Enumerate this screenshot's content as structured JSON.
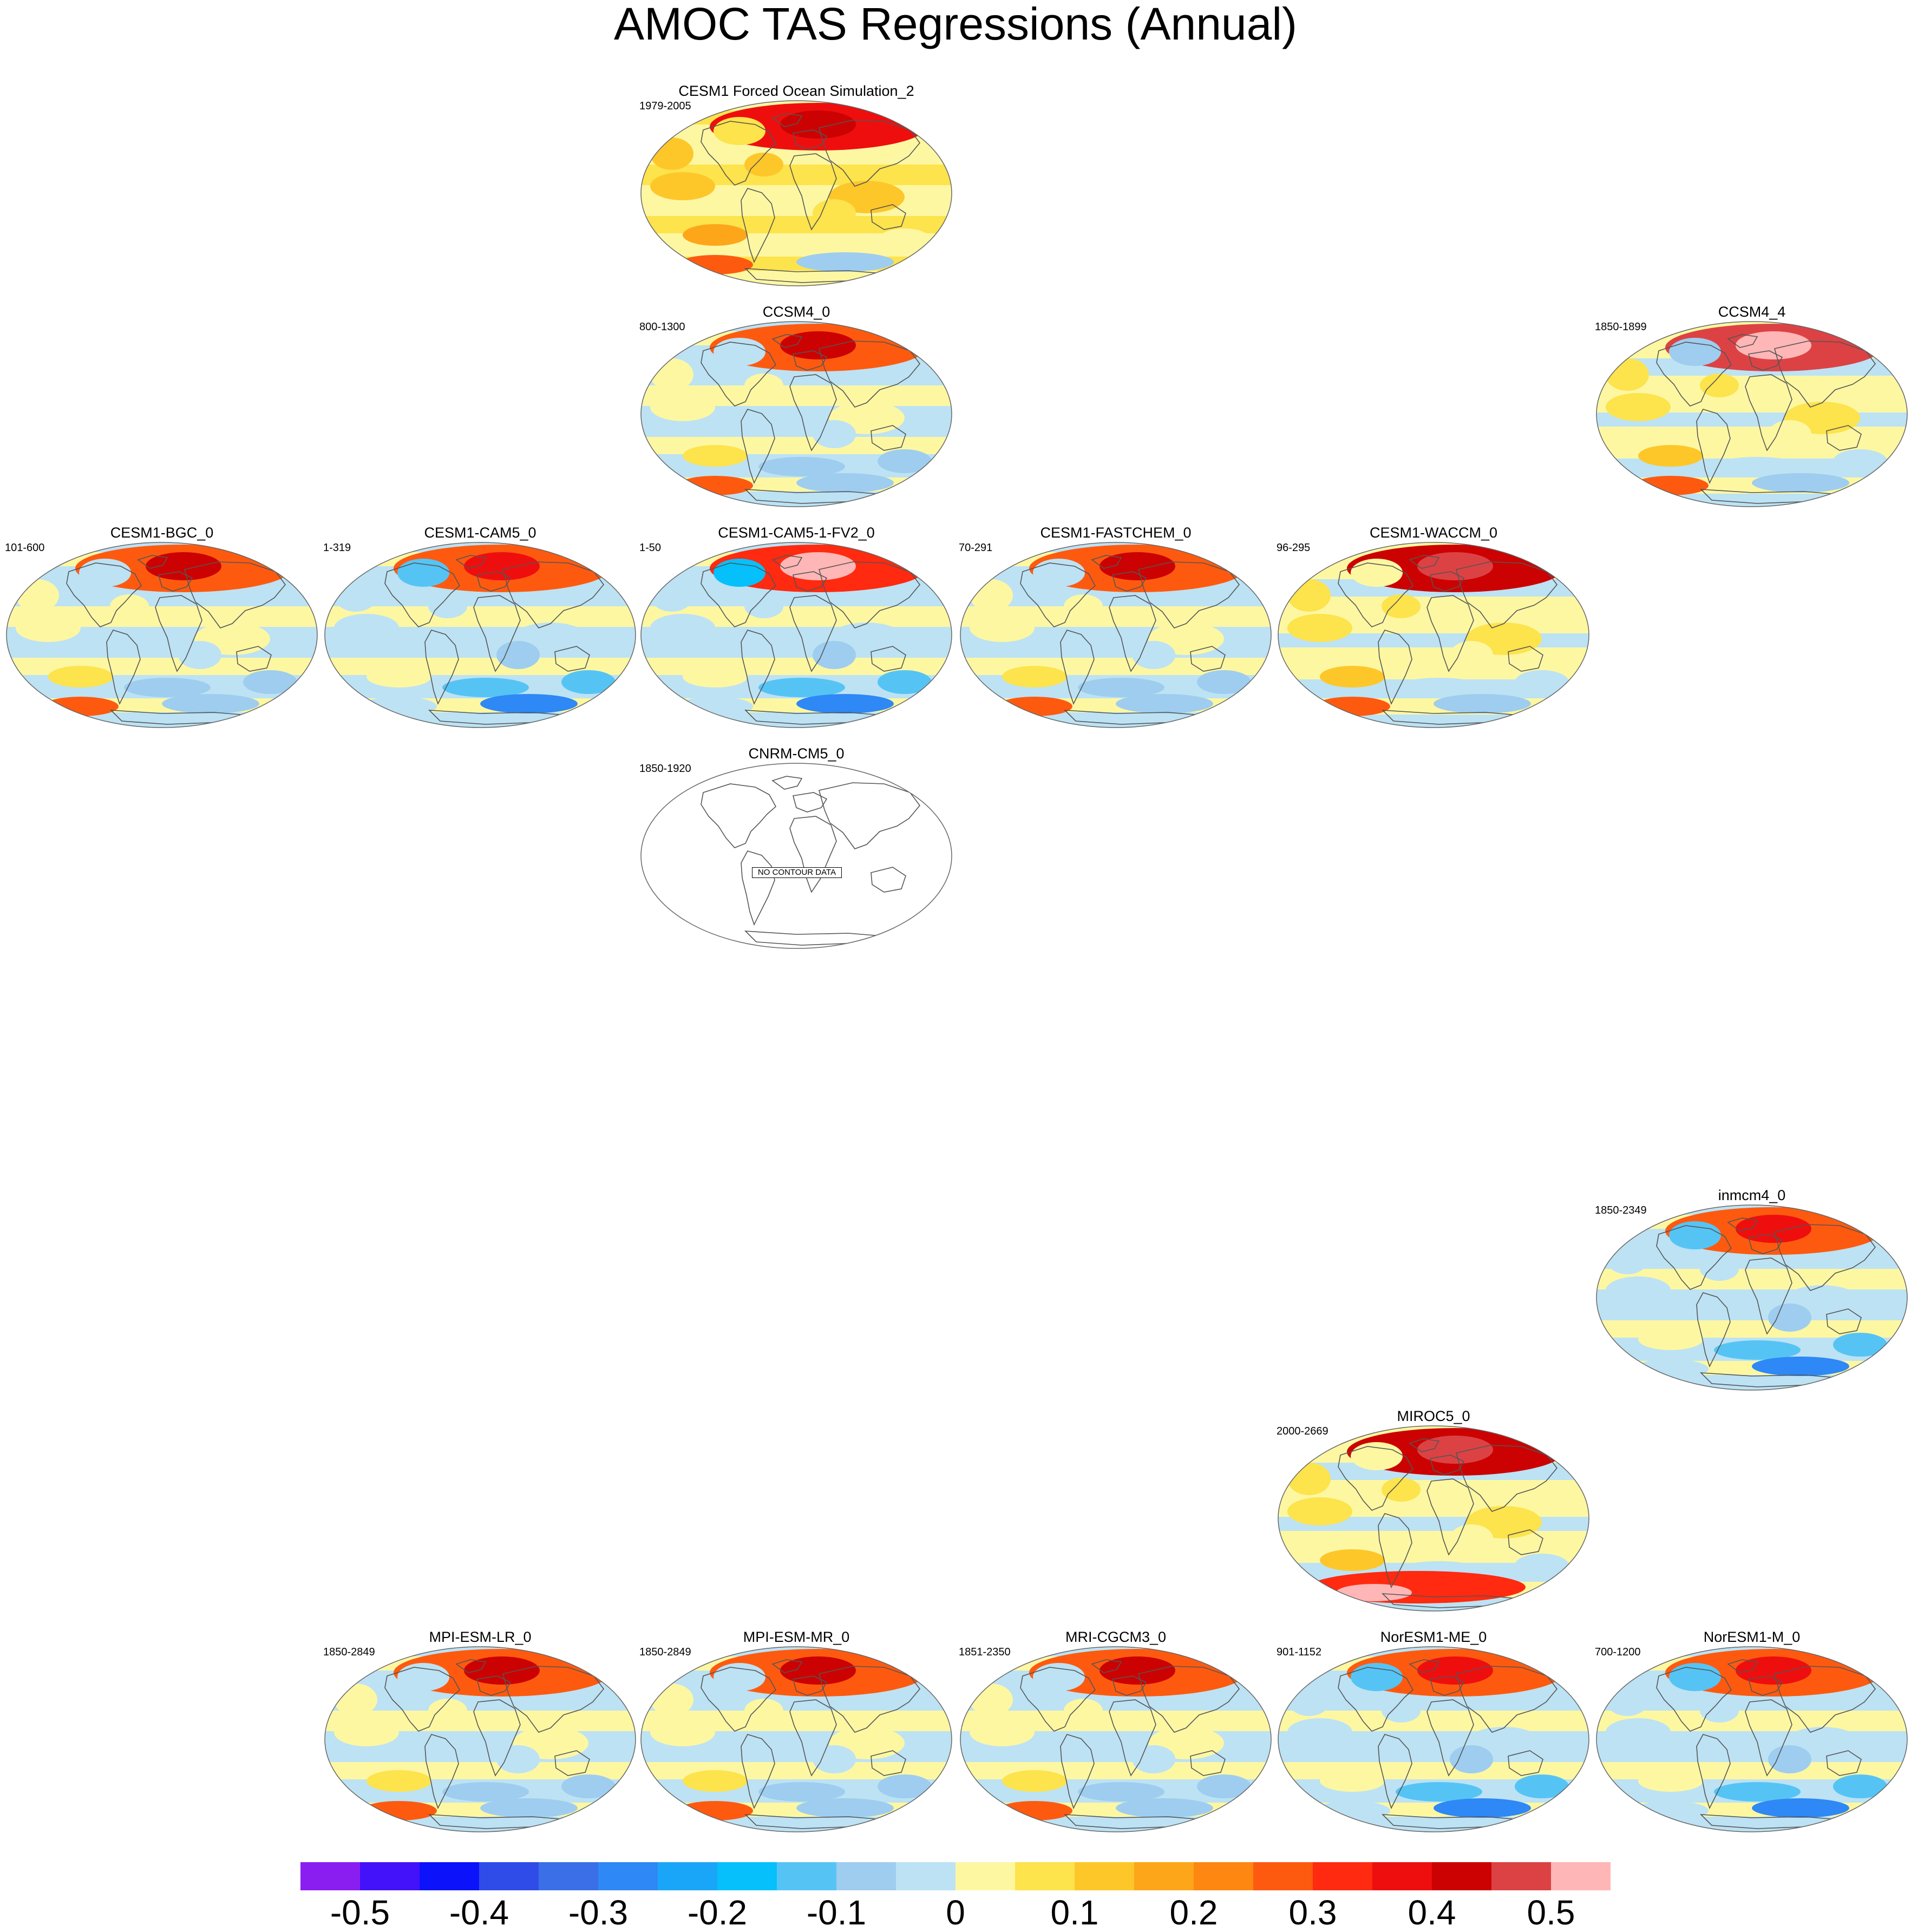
{
  "title": "AMOC TAS Regressions (Annual)",
  "icons": {
    "map": "world-map-icon"
  },
  "panels": [
    {
      "title": "CESM1 Forced Ocean Simulation_2",
      "years": "1979-2005",
      "pattern": "warm-speckled"
    },
    {
      "title": "CCSM4_0",
      "years": "800-1300",
      "pattern": "mixed"
    },
    {
      "title": "CCSM4_4",
      "years": "1850-1899",
      "pattern": "strong-arctic"
    },
    {
      "title": "CESM1-BGC_0",
      "years": "101-600",
      "pattern": "mixed"
    },
    {
      "title": "CESM1-CAM5_0",
      "years": "1-319",
      "pattern": "cool"
    },
    {
      "title": "CESM1-CAM5-1-FV2_0",
      "years": "1-50",
      "pattern": "cool-strong"
    },
    {
      "title": "CESM1-FASTCHEM_0",
      "years": "70-291",
      "pattern": "mixed"
    },
    {
      "title": "CESM1-WACCM_0",
      "years": "96-295",
      "pattern": "warm"
    },
    {
      "title": "CNRM-CM5_0",
      "years": "1850-1920",
      "pattern": "none",
      "message": "NO CONTOUR DATA"
    },
    {
      "title": "inmcm4_0",
      "years": "1850-2349",
      "pattern": "cool"
    },
    {
      "title": "MIROC5_0",
      "years": "2000-2669",
      "pattern": "warm-south"
    },
    {
      "title": "MPI-ESM-LR_0",
      "years": "1850-2849",
      "pattern": "mixed"
    },
    {
      "title": "MPI-ESM-MR_0",
      "years": "1850-2849",
      "pattern": "mixed"
    },
    {
      "title": "MRI-CGCM3_0",
      "years": "1851-2350",
      "pattern": "mixed"
    },
    {
      "title": "NorESM1-ME_0",
      "years": "901-1152",
      "pattern": "cool"
    },
    {
      "title": "NorESM1-M_0",
      "years": "700-1200",
      "pattern": "cool"
    }
  ],
  "colorbar": {
    "colors": [
      "#8a1ef0",
      "#4412fa",
      "#0c12fa",
      "#2f4ce8",
      "#3a6fe8",
      "#2e88f5",
      "#1aa6f8",
      "#05c0fb",
      "#55c4f5",
      "#9ecdef",
      "#bce2f4",
      "#fdf7a2",
      "#fde34c",
      "#fdc72a",
      "#fda61a",
      "#fd8710",
      "#fd5a10",
      "#ff2a10",
      "#ef0e0e",
      "#cc0202",
      "#dc4244",
      "#ffb6b6"
    ],
    "ticks": [
      "-0.5",
      "-0.4",
      "-0.3",
      "-0.2",
      "-0.1",
      "0",
      "0.1",
      "0.2",
      "0.3",
      "0.4",
      "0.5"
    ]
  }
}
